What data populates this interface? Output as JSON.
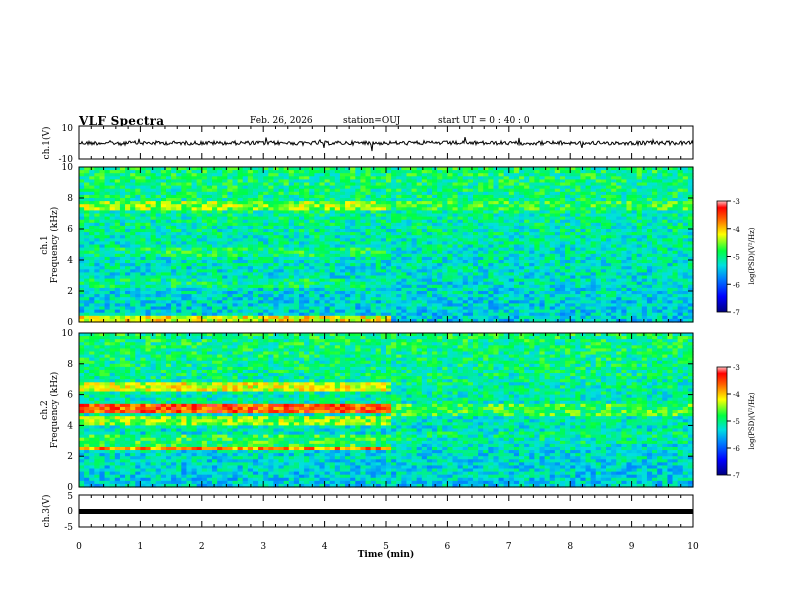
{
  "header": {
    "title": "VLF Spectra",
    "date": "Feb. 26, 2026",
    "station": "station=OUJ",
    "start_ut": "start  UT  =   0  : 40 : 0"
  },
  "chart_data": [
    {
      "type": "line",
      "name": "ch1-waveform",
      "ylabel": "ch.1(V)",
      "ytick_labels": [
        "10",
        "-10"
      ],
      "ylim": [
        -10,
        10
      ],
      "xlim": [
        0,
        10
      ],
      "description_values": {
        "baseline_v": 0.0,
        "noise_amplitude_v": 2
      }
    },
    {
      "type": "heatmap",
      "name": "ch1-spectrogram",
      "ylabel_top": "ch.1",
      "ylabel": "Frequency  (kHz)",
      "ylim": [
        0,
        10
      ],
      "yticks": [
        0,
        2,
        4,
        6,
        8,
        10
      ],
      "xlim": [
        0,
        10
      ],
      "colorbar": {
        "label": "log(PSD)(V²/Hz)",
        "ticks": [
          -3,
          -4,
          -5,
          -6,
          -7
        ],
        "range": [
          -7,
          -3
        ]
      },
      "regime_change_min": 5.1
    },
    {
      "type": "heatmap",
      "name": "ch2-spectrogram",
      "ylabel_top": "ch.2",
      "ylabel": "Frequency  (kHz)",
      "ylim": [
        0,
        10
      ],
      "yticks": [
        0,
        2,
        4,
        6,
        8,
        10
      ],
      "xlim": [
        0,
        10
      ],
      "colorbar": {
        "label": "log(PSD)(V²/Hz)",
        "ticks": [
          -3,
          -4,
          -5,
          -6,
          -7
        ],
        "range": [
          -7,
          -3
        ]
      },
      "regime_change_min": 5.1
    },
    {
      "type": "line",
      "name": "ch3-waveform",
      "ylabel": "ch.3(V)",
      "ytick_labels": [
        "5",
        "0",
        "-5"
      ],
      "ylim": [
        -5,
        5
      ],
      "xlim": [
        0,
        10
      ],
      "description_values": {
        "level_v": 0.0
      }
    }
  ],
  "x_axis": {
    "label": "Time  (min)",
    "ticks": [
      "0",
      "1",
      "2",
      "3",
      "4",
      "5",
      "6",
      "7",
      "8",
      "9",
      "10"
    ]
  },
  "colors": {
    "spectrum_low": "#000088",
    "spectrum_high": "#ff0000"
  }
}
